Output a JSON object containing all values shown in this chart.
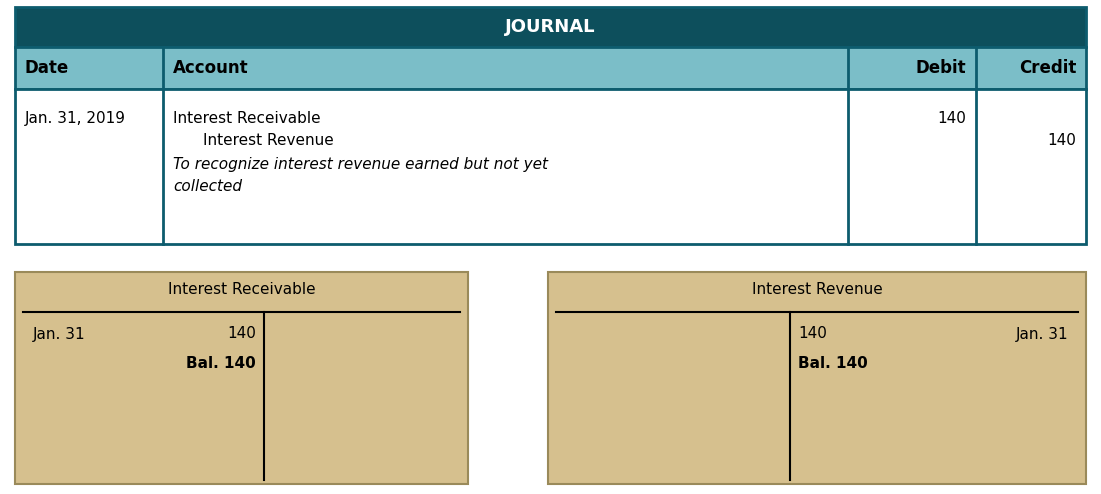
{
  "title": "JOURNAL",
  "title_bg": "#0d4f5c",
  "title_color": "#ffffff",
  "header_bg": "#7bbec8",
  "row_bg": "#ffffff",
  "border_color": "#0d5c6e",
  "headers": [
    "Date",
    "Account",
    "Debit",
    "Credit"
  ],
  "date": "Jan. 31, 2019",
  "account_line1": "Interest Receivable",
  "account_line2": "    Interest Revenue",
  "account_line3_a": "To recognize interest revenue earned but not yet",
  "account_line3_b": "collected",
  "debit_value": "140",
  "credit_value": "140",
  "taccount_bg": "#d6c08e",
  "taccount1_title": "Interest Receivable",
  "taccount1_left_date": "Jan. 31",
  "taccount1_left_val": "140",
  "taccount1_bal": "Bal. 140",
  "taccount2_title": "Interest Revenue",
  "taccount2_right_val": "140",
  "taccount2_right_date": "Jan. 31",
  "taccount2_bal": "Bal. 140",
  "fig_bg": "#ffffff"
}
